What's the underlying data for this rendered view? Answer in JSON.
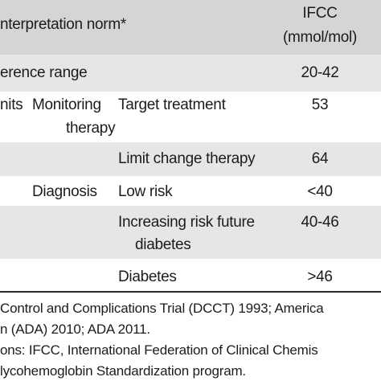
{
  "table": {
    "header": {
      "interpretation": "nterpretation norm*",
      "ifcc_line1": "IFCC",
      "ifcc_line2": "(mmol/mol)"
    },
    "rows": [
      {
        "col1": "erence range",
        "value": "20-42"
      },
      {
        "col1": "nits",
        "col2_line1": "Monitoring",
        "col2_line2": "therapy",
        "col3": "Target treatment",
        "value": "53"
      },
      {
        "col3": "Limit change therapy",
        "value": "64"
      },
      {
        "col2": "Diagnosis",
        "col3": "Low risk",
        "value": "<40"
      },
      {
        "col3_line1": "Increasing risk future",
        "col3_line2": "diabetes",
        "value": "40-46"
      },
      {
        "col3": "Diabetes",
        "value": ">46"
      }
    ]
  },
  "footnotes": {
    "line1": "Control and Complications Trial (DCCT) 1993; America",
    "line2": "n (ADA) 2010; ADA 2011.",
    "line3": "ons: IFCC, International Federation of Clinical Chemis",
    "line4": "lycohemoglobin Standardization program."
  }
}
